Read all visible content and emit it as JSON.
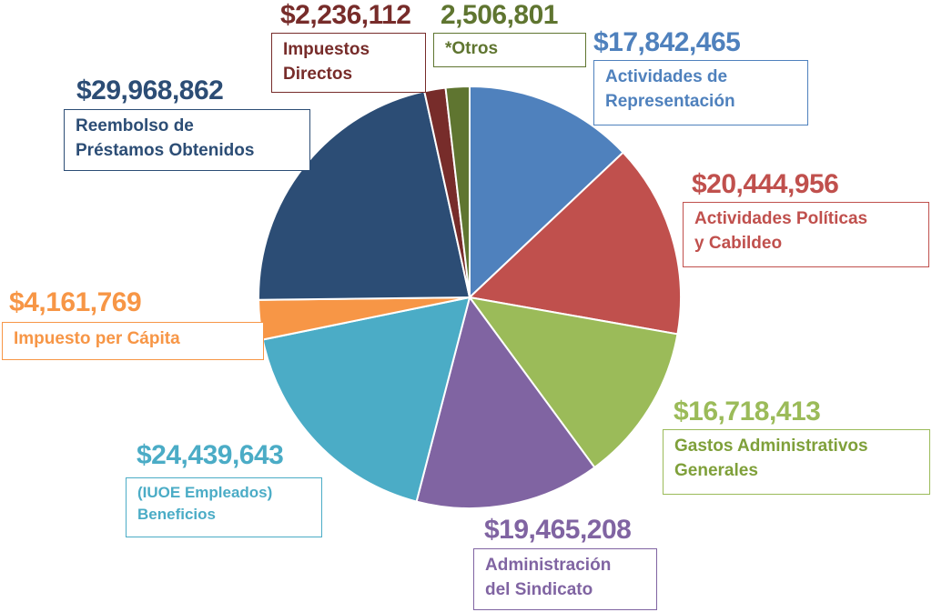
{
  "chart_data": {
    "type": "pie",
    "slices": [
      {
        "amount": "$17,842,465",
        "value": 17842465,
        "name": "Actividades de Representación",
        "line1": "Actividades de",
        "line2": "Representación",
        "color": "#4F81BD"
      },
      {
        "amount": "$20,444,956",
        "value": 20444956,
        "name": "Actividades Políticas y Cabildeo",
        "line1": "Actividades Políticas",
        "line2": "y Cabildeo",
        "color": "#C0504D"
      },
      {
        "amount": "$16,718,413",
        "value": 16718413,
        "name": "Gastos Administrativos Generales",
        "line1": "Gastos Administrativos",
        "line2": "Generales",
        "color": "#9BBB59"
      },
      {
        "amount": "$19,465,208",
        "value": 19465208,
        "name": "Administración del Sindicato",
        "line1": "Administración",
        "line2": "del Sindicato",
        "color": "#8064A2"
      },
      {
        "amount": "$24,439,643",
        "value": 24439643,
        "name": "(IUOE Empleados) Beneficios",
        "line1": "(IUOE Empleados)",
        "line2": "Beneficios",
        "color": "#4BACC6"
      },
      {
        "amount": "$4,161,769",
        "value": 4161769,
        "name": "Impuesto per Cápita",
        "line1": "Impuesto per Cápita",
        "line2": "",
        "color": "#F79646"
      },
      {
        "amount": "$29,968,862",
        "value": 29968862,
        "name": "Reembolso de Préstamos Obtenidos",
        "line1": "Reembolso de",
        "line2": "Préstamos Obtenidos",
        "color": "#2C4D75"
      },
      {
        "amount": "$2,236,112",
        "value": 2236112,
        "name": "Impuestos Directos",
        "line1": "Impuestos",
        "line2": "Directos",
        "color": "#772C2A"
      },
      {
        "amount": "2,506,801",
        "value": 2506801,
        "name": "*Otros",
        "line1": "*Otros",
        "line2": "",
        "color": "#5F7530"
      }
    ]
  }
}
